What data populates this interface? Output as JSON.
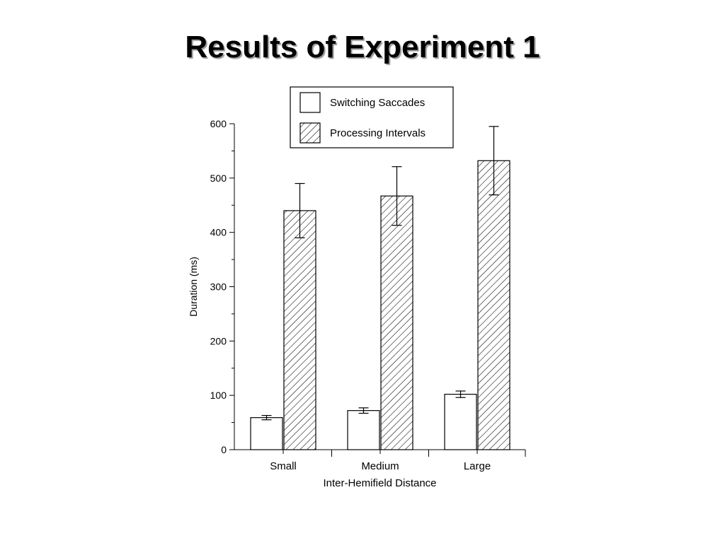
{
  "slide": {
    "title": "Results of Experiment 1"
  },
  "chart_data": {
    "type": "bar",
    "title": "",
    "xlabel": "Inter-Hemifield Distance",
    "ylabel": "Duration (ms)",
    "ylim": [
      0,
      600
    ],
    "yticks": [
      0,
      100,
      200,
      300,
      400,
      500,
      600
    ],
    "categories": [
      "Small",
      "Medium",
      "Large"
    ],
    "series": [
      {
        "name": "Switching Saccades",
        "fill": "plain",
        "values": [
          59,
          72,
          102
        ],
        "errors": [
          4,
          5,
          6
        ]
      },
      {
        "name": "Processing Intervals",
        "fill": "hatched",
        "values": [
          440,
          467,
          532
        ],
        "errors": [
          50,
          54,
          63
        ]
      }
    ],
    "legend_position": "top",
    "grid": false,
    "colors": {
      "outline": "#000000",
      "bar_fill": "#ffffff",
      "hatch": "#000000"
    }
  }
}
